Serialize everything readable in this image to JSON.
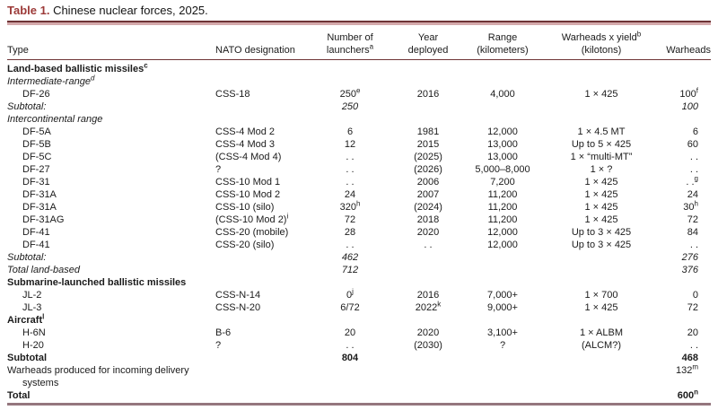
{
  "page": {
    "background": "#ffffff",
    "accent_color": "#9c3a38",
    "rule_color": "#6e3336",
    "bottom_rule_color": "#94767e"
  },
  "table": {
    "title_label": "Table 1.",
    "title_text": " Chinese nuclear forces, 2025.",
    "header": {
      "type": "Type",
      "nato": "NATO designation",
      "launchers_1": "Number of",
      "launchers_2": "launchers",
      "launchers_sup": "a",
      "year_1": "Year",
      "year_2": "deployed",
      "range_1": "Range",
      "range_2": "(kilometers)",
      "yield_1": "Warheads x yield",
      "yield_sup": "b",
      "yield_2": "(kilotons)",
      "warheads": "Warheads"
    },
    "rows": [
      {
        "style": "section",
        "cells": [
          {
            "t": "Land-based ballistic missiles",
            "s": "c"
          },
          {
            "t": ""
          },
          {
            "t": ""
          },
          {
            "t": ""
          },
          {
            "t": ""
          },
          {
            "t": ""
          },
          {
            "t": ""
          }
        ]
      },
      {
        "style": "group",
        "cells": [
          {
            "t": "Intermediate-range",
            "s": "d"
          },
          {
            "t": ""
          },
          {
            "t": ""
          },
          {
            "t": ""
          },
          {
            "t": ""
          },
          {
            "t": ""
          },
          {
            "t": ""
          }
        ]
      },
      {
        "style": "missile",
        "cells": [
          {
            "t": "DF-26"
          },
          {
            "t": "CSS-18"
          },
          {
            "t": "250",
            "s": "e"
          },
          {
            "t": "2016"
          },
          {
            "t": "4,000"
          },
          {
            "t": "1 × 425"
          },
          {
            "t": "100",
            "s": "f"
          }
        ]
      },
      {
        "style": "subtotal",
        "cells": [
          {
            "t": "Subtotal:"
          },
          {
            "t": ""
          },
          {
            "t": "250"
          },
          {
            "t": ""
          },
          {
            "t": ""
          },
          {
            "t": ""
          },
          {
            "t": "100"
          }
        ]
      },
      {
        "style": "group",
        "cells": [
          {
            "t": "Intercontinental range"
          },
          {
            "t": ""
          },
          {
            "t": ""
          },
          {
            "t": ""
          },
          {
            "t": ""
          },
          {
            "t": ""
          },
          {
            "t": ""
          }
        ]
      },
      {
        "style": "missile",
        "cells": [
          {
            "t": "DF-5A"
          },
          {
            "t": "CSS-4 Mod 2"
          },
          {
            "t": "6"
          },
          {
            "t": "1981"
          },
          {
            "t": "12,000"
          },
          {
            "t": "1 × 4.5 MT"
          },
          {
            "t": "6"
          }
        ]
      },
      {
        "style": "missile",
        "cells": [
          {
            "t": "DF-5B"
          },
          {
            "t": "CSS-4 Mod 3"
          },
          {
            "t": "12"
          },
          {
            "t": "2015"
          },
          {
            "t": "13,000"
          },
          {
            "t": "Up to 5 × 425"
          },
          {
            "t": "60"
          }
        ]
      },
      {
        "style": "missile",
        "cells": [
          {
            "t": "DF-5C"
          },
          {
            "t": "(CSS-4 Mod 4)"
          },
          {
            "t": ". ."
          },
          {
            "t": "(2025)"
          },
          {
            "t": "13,000"
          },
          {
            "t": "1 × “multi-MT”"
          },
          {
            "t": ". ."
          }
        ]
      },
      {
        "style": "missile",
        "cells": [
          {
            "t": "DF-27"
          },
          {
            "t": "?"
          },
          {
            "t": ". ."
          },
          {
            "t": "(2026)"
          },
          {
            "t": "5,000–8,000"
          },
          {
            "t": "1 × ?"
          },
          {
            "t": ". ."
          }
        ]
      },
      {
        "style": "missile",
        "cells": [
          {
            "t": "DF-31"
          },
          {
            "t": "CSS-10 Mod 1"
          },
          {
            "t": ". ."
          },
          {
            "t": "2006"
          },
          {
            "t": "7,200"
          },
          {
            "t": "1 × 425"
          },
          {
            "t": ". .",
            "s": "g"
          }
        ]
      },
      {
        "style": "missile",
        "cells": [
          {
            "t": "DF-31A"
          },
          {
            "t": "CSS-10 Mod 2"
          },
          {
            "t": "24"
          },
          {
            "t": "2007"
          },
          {
            "t": "11,200"
          },
          {
            "t": "1 × 425"
          },
          {
            "t": "24"
          }
        ]
      },
      {
        "style": "missile",
        "cells": [
          {
            "t": "DF-31A"
          },
          {
            "t": "CSS-10 (silo)"
          },
          {
            "t": "320",
            "s": "h"
          },
          {
            "t": "(2024)"
          },
          {
            "t": "11,200"
          },
          {
            "t": "1 × 425"
          },
          {
            "t": "30",
            "s": "h"
          }
        ]
      },
      {
        "style": "missile",
        "cells": [
          {
            "t": "DF-31AG"
          },
          {
            "t": "(CSS-10 Mod 2)",
            "s": "i"
          },
          {
            "t": "72"
          },
          {
            "t": "2018"
          },
          {
            "t": "11,200"
          },
          {
            "t": "1 × 425"
          },
          {
            "t": "72"
          }
        ]
      },
      {
        "style": "missile",
        "cells": [
          {
            "t": "DF-41"
          },
          {
            "t": "CSS-20 (mobile)"
          },
          {
            "t": "28"
          },
          {
            "t": "2020"
          },
          {
            "t": "12,000"
          },
          {
            "t": "Up to 3 × 425"
          },
          {
            "t": "84"
          }
        ]
      },
      {
        "style": "missile",
        "cells": [
          {
            "t": "DF-41"
          },
          {
            "t": "CSS-20 (silo)"
          },
          {
            "t": ". ."
          },
          {
            "t": ". ."
          },
          {
            "t": "12,000"
          },
          {
            "t": "Up to 3 × 425"
          },
          {
            "t": ". ."
          }
        ]
      },
      {
        "style": "subtotal",
        "cells": [
          {
            "t": "Subtotal:"
          },
          {
            "t": ""
          },
          {
            "t": "462"
          },
          {
            "t": ""
          },
          {
            "t": ""
          },
          {
            "t": ""
          },
          {
            "t": "276"
          }
        ]
      },
      {
        "style": "subtotal",
        "cells": [
          {
            "t": "Total land-based"
          },
          {
            "t": ""
          },
          {
            "t": "712"
          },
          {
            "t": ""
          },
          {
            "t": ""
          },
          {
            "t": ""
          },
          {
            "t": "376"
          }
        ]
      },
      {
        "style": "section",
        "cells": [
          {
            "t": "Submarine-launched ballistic missiles"
          },
          {
            "t": ""
          },
          {
            "t": ""
          },
          {
            "t": ""
          },
          {
            "t": ""
          },
          {
            "t": ""
          },
          {
            "t": ""
          }
        ]
      },
      {
        "style": "missile",
        "cells": [
          {
            "t": "JL-2"
          },
          {
            "t": "CSS-N-14"
          },
          {
            "t": "0",
            "s": "j"
          },
          {
            "t": "2016"
          },
          {
            "t": "7,000+"
          },
          {
            "t": "1 × 700"
          },
          {
            "t": "0"
          }
        ]
      },
      {
        "style": "missile",
        "cells": [
          {
            "t": "JL-3"
          },
          {
            "t": "CSS-N-20"
          },
          {
            "t": "6/72"
          },
          {
            "t": "2022",
            "s": "k"
          },
          {
            "t": "9,000+"
          },
          {
            "t": "1 × 425"
          },
          {
            "t": "72"
          }
        ]
      },
      {
        "style": "section",
        "cells": [
          {
            "t": "Aircraft",
            "s": "l"
          },
          {
            "t": ""
          },
          {
            "t": ""
          },
          {
            "t": ""
          },
          {
            "t": ""
          },
          {
            "t": ""
          },
          {
            "t": ""
          }
        ]
      },
      {
        "style": "missile",
        "cells": [
          {
            "t": "H-6N"
          },
          {
            "t": "B-6"
          },
          {
            "t": "20"
          },
          {
            "t": "2020"
          },
          {
            "t": "3,100+"
          },
          {
            "t": "1 × ALBM"
          },
          {
            "t": "20"
          }
        ]
      },
      {
        "style": "missile",
        "cells": [
          {
            "t": "H-20"
          },
          {
            "t": "?"
          },
          {
            "t": ". ."
          },
          {
            "t": "(2030)"
          },
          {
            "t": "?"
          },
          {
            "t": "(ALCM?)"
          },
          {
            "t": ". ."
          }
        ]
      },
      {
        "style": "bold",
        "cells": [
          {
            "t": "Subtotal"
          },
          {
            "t": ""
          },
          {
            "t": "804"
          },
          {
            "t": ""
          },
          {
            "t": ""
          },
          {
            "t": ""
          },
          {
            "t": "468"
          }
        ]
      },
      {
        "style": "wrap",
        "cells": [
          {
            "t": "Warheads produced for incoming delivery systems"
          },
          {
            "t": ""
          },
          {
            "t": ""
          },
          {
            "t": ""
          },
          {
            "t": ""
          },
          {
            "t": ""
          },
          {
            "t": "132",
            "s": "m"
          }
        ]
      },
      {
        "style": "bold",
        "cells": [
          {
            "t": "Total"
          },
          {
            "t": ""
          },
          {
            "t": ""
          },
          {
            "t": ""
          },
          {
            "t": ""
          },
          {
            "t": ""
          },
          {
            "t": "600",
            "s": "n"
          }
        ]
      }
    ]
  }
}
